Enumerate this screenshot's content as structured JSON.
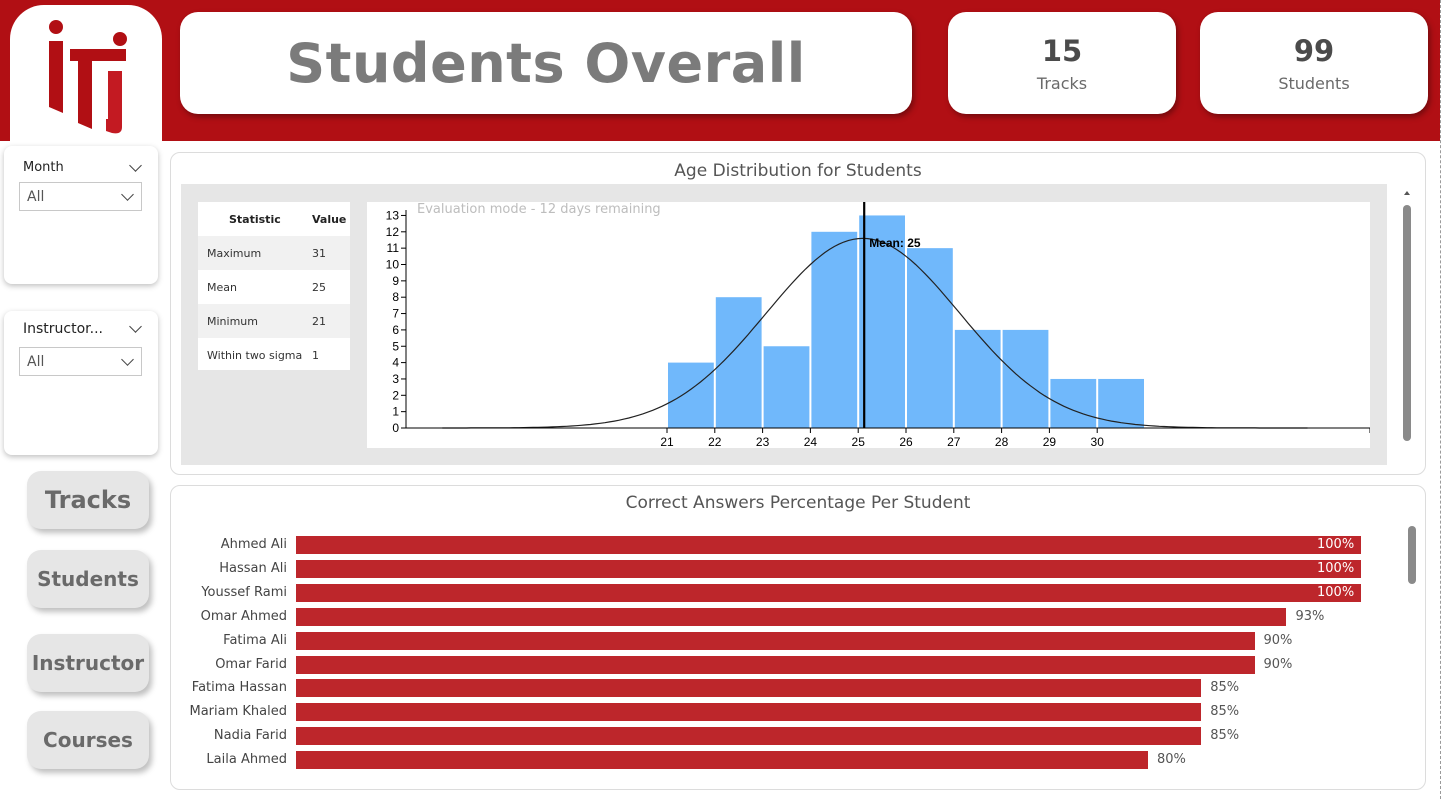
{
  "header": {
    "title": "Students Overall",
    "kpis": [
      {
        "value": "15",
        "label": "Tracks"
      },
      {
        "value": "99",
        "label": "Students"
      }
    ]
  },
  "logo": {
    "name": "iti-logo",
    "color": "#b10f14"
  },
  "filters": [
    {
      "label": "Month",
      "selected": "All"
    },
    {
      "label": "Instructor...",
      "selected": "All"
    }
  ],
  "nav": [
    {
      "label": "Tracks"
    },
    {
      "label": "Students"
    },
    {
      "label": "Instructor"
    },
    {
      "label": "Courses"
    }
  ],
  "age_panel": {
    "title": "Age Distribution for Students",
    "eval_note": "Evaluation mode - 12 days remaining",
    "stats_headers": [
      "Statistic",
      "Value"
    ],
    "stats": [
      {
        "name": "Maximum",
        "value": "31"
      },
      {
        "name": "Mean",
        "value": "25"
      },
      {
        "name": "Minimum",
        "value": "21"
      },
      {
        "name": "Within two sigma",
        "value": "1"
      }
    ],
    "mean_label": "Mean: 25"
  },
  "answers_panel": {
    "title": "Correct Answers Percentage Per Student"
  },
  "chart_data": [
    {
      "type": "bar",
      "categories": [
        "21",
        "22",
        "23",
        "24",
        "25",
        "26",
        "27",
        "28",
        "29",
        "30"
      ],
      "values": [
        4,
        8,
        5,
        12,
        13,
        11,
        6,
        6,
        3,
        3
      ],
      "ylim": [
        0,
        13
      ],
      "yticks": [
        0,
        1,
        2,
        3,
        4,
        5,
        6,
        7,
        8,
        9,
        10,
        11,
        12,
        13
      ],
      "overlay": {
        "type": "normal-curve",
        "mean": 25,
        "peak": 11.6
      },
      "mean_line": 25,
      "bar_color": "#70b8fb"
    },
    {
      "type": "bar",
      "orientation": "horizontal",
      "categories": [
        "Ahmed Ali",
        "Hassan Ali",
        "Youssef Rami",
        "Omar Ahmed",
        "Fatima Ali",
        "Omar Farid",
        "Fatima Hassan",
        "Mariam Khaled",
        "Nadia Farid",
        "Laila Ahmed"
      ],
      "values": [
        100,
        100,
        100,
        93,
        90,
        90,
        85,
        85,
        85,
        80
      ],
      "labels": [
        "100%",
        "100%",
        "100%",
        "93%",
        "90%",
        "90%",
        "85%",
        "85%",
        "85%",
        "80%"
      ],
      "xlim": [
        0,
        100
      ],
      "bar_color": "#bd262b"
    }
  ]
}
